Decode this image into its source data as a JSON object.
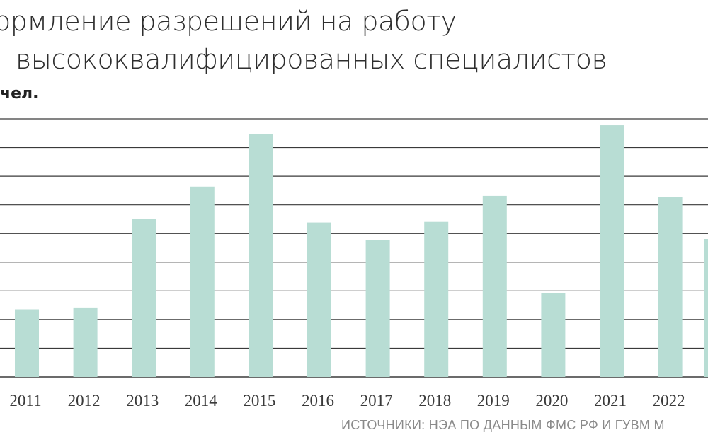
{
  "chart": {
    "title_line1": "ормление разрешений на работу",
    "title_line2": "высококвалифицированных специалистов",
    "unit": "чел.",
    "source": "ИСТОЧНИКИ: НЭА ПО ДАННЫМ ФМС РФ И ГУВМ М",
    "bar_color": "#b8ddd4",
    "grid_color": "#3a3a3a"
  },
  "chart_data": {
    "type": "bar",
    "categories": [
      "2011",
      "2012",
      "2013",
      "2014",
      "2015",
      "2016",
      "2017",
      "2018",
      "2019",
      "2020",
      "2021",
      "2022"
    ],
    "values": [
      3.27,
      3.36,
      7.64,
      9.22,
      11.75,
      7.48,
      6.63,
      7.51,
      8.77,
      4.06,
      12.19,
      8.72
    ],
    "ylim": [
      0,
      12.5
    ],
    "gridlines": 9,
    "grid": true,
    "ytick_labels_visible": false
  }
}
